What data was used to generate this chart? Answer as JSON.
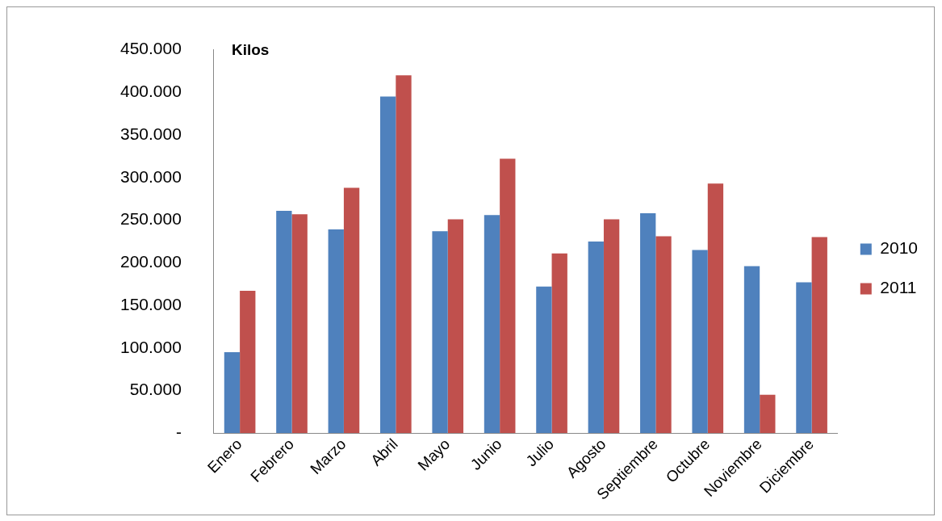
{
  "chart_data": {
    "type": "bar",
    "ylabel": "Kilos",
    "categories": [
      "Enero",
      "Febrero",
      "Marzo",
      "Abril",
      "Mayo",
      "Junio",
      "Julio",
      "Agosto",
      "Septiembre",
      "Octubre",
      "Noviembre",
      "Diciembre"
    ],
    "series": [
      {
        "name": "2010",
        "color": "#4f81bd",
        "values": [
          95000,
          261000,
          239000,
          395000,
          237000,
          256000,
          172000,
          225000,
          258000,
          215000,
          196000,
          177000
        ]
      },
      {
        "name": "2011",
        "color": "#c0504d",
        "values": [
          167000,
          257000,
          288000,
          420000,
          251000,
          322000,
          211000,
          251000,
          231000,
          293000,
          45000,
          230000
        ]
      }
    ],
    "ylim": [
      0,
      450000
    ],
    "yticks": [
      {
        "value": 0,
        "label": "-"
      },
      {
        "value": 50000,
        "label": "50.000"
      },
      {
        "value": 100000,
        "label": "100.000"
      },
      {
        "value": 150000,
        "label": "150.000"
      },
      {
        "value": 200000,
        "label": "200.000"
      },
      {
        "value": 250000,
        "label": "250.000"
      },
      {
        "value": 300000,
        "label": "300.000"
      },
      {
        "value": 350000,
        "label": "350.000"
      },
      {
        "value": 400000,
        "label": "400.000"
      },
      {
        "value": 450000,
        "label": "450.000"
      }
    ],
    "grid": false,
    "legend": "right"
  }
}
